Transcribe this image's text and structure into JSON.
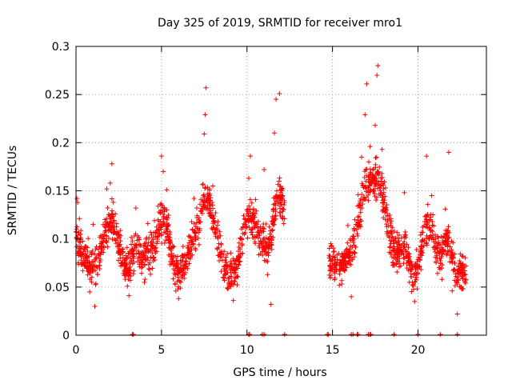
{
  "chart_data": {
    "type": "scatter",
    "title": "Day 325 of 2019, SRMTID for receiver mro1",
    "xlabel": "GPS time / hours",
    "ylabel": "SRMTID / TECUs",
    "xlim": [
      0,
      24
    ],
    "ylim": [
      0,
      0.3
    ],
    "xticks": [
      0,
      5,
      10,
      15,
      20
    ],
    "xtick_labels": [
      "0",
      "5",
      "10",
      "15",
      "20"
    ],
    "yticks": [
      0,
      0.05,
      0.1,
      0.15,
      0.2,
      0.25,
      0.3
    ],
    "ytick_labels": [
      "0",
      "0.05",
      "0.1",
      "0.15",
      "0.2",
      "0.25",
      "0.3"
    ],
    "grid": true,
    "marker": "+",
    "color": "#ff0000",
    "series": [
      {
        "name": "SRMTID",
        "segments": [
          {
            "x_range": [
              0.0,
              12.2
            ],
            "min": 0.025,
            "max": 0.26
          },
          {
            "x_range": [
              14.8,
              22.8
            ],
            "min": 0.02,
            "max": 0.28
          }
        ],
        "points": [
          [
            0.05,
            0.142
          ],
          [
            0.1,
            0.138
          ],
          [
            0.2,
            0.121
          ],
          [
            0.3,
            0.078
          ],
          [
            0.4,
            0.067
          ],
          [
            0.6,
            0.092
          ],
          [
            0.8,
            0.045
          ],
          [
            1.0,
            0.115
          ],
          [
            1.1,
            0.03
          ],
          [
            1.2,
            0.071
          ],
          [
            1.5,
            0.103
          ],
          [
            1.8,
            0.152
          ],
          [
            2.0,
            0.158
          ],
          [
            2.1,
            0.178
          ],
          [
            2.3,
            0.126
          ],
          [
            2.6,
            0.088
          ],
          [
            2.9,
            0.064
          ],
          [
            3.1,
            0.041
          ],
          [
            3.3,
            0.098
          ],
          [
            3.5,
            0.132
          ],
          [
            3.8,
            0.085
          ],
          [
            4.0,
            0.055
          ],
          [
            4.2,
            0.116
          ],
          [
            4.5,
            0.08
          ],
          [
            4.8,
            0.134
          ],
          [
            5.0,
            0.186
          ],
          [
            5.1,
            0.17
          ],
          [
            5.3,
            0.151
          ],
          [
            5.5,
            0.096
          ],
          [
            5.8,
            0.053
          ],
          [
            6.0,
            0.038
          ],
          [
            6.3,
            0.072
          ],
          [
            6.6,
            0.103
          ],
          [
            6.9,
            0.142
          ],
          [
            7.2,
            0.094
          ],
          [
            7.5,
            0.209
          ],
          [
            7.55,
            0.229
          ],
          [
            7.6,
            0.257
          ],
          [
            7.8,
            0.132
          ],
          [
            8.0,
            0.155
          ],
          [
            8.3,
            0.118
          ],
          [
            8.6,
            0.06
          ],
          [
            8.9,
            0.049
          ],
          [
            9.2,
            0.036
          ],
          [
            9.5,
            0.082
          ],
          [
            9.8,
            0.124
          ],
          [
            10.1,
            0.163
          ],
          [
            10.2,
            0.186
          ],
          [
            10.5,
            0.141
          ],
          [
            10.8,
            0.098
          ],
          [
            11.0,
            0.172
          ],
          [
            11.2,
            0.063
          ],
          [
            11.4,
            0.032
          ],
          [
            11.6,
            0.21
          ],
          [
            11.7,
            0.245
          ],
          [
            11.9,
            0.251
          ],
          [
            12.1,
            0.121
          ],
          [
            14.9,
            0.095
          ],
          [
            15.1,
            0.066
          ],
          [
            15.4,
            0.052
          ],
          [
            15.6,
            0.082
          ],
          [
            15.9,
            0.114
          ],
          [
            16.1,
            0.04
          ],
          [
            16.3,
            0.12
          ],
          [
            16.5,
            0.146
          ],
          [
            16.7,
            0.185
          ],
          [
            16.9,
            0.229
          ],
          [
            17.0,
            0.261
          ],
          [
            17.2,
            0.196
          ],
          [
            17.5,
            0.218
          ],
          [
            17.6,
            0.27
          ],
          [
            17.65,
            0.28
          ],
          [
            17.9,
            0.193
          ],
          [
            18.1,
            0.153
          ],
          [
            18.4,
            0.121
          ],
          [
            18.6,
            0.092
          ],
          [
            18.9,
            0.071
          ],
          [
            19.2,
            0.148
          ],
          [
            19.5,
            0.055
          ],
          [
            19.8,
            0.035
          ],
          [
            20.1,
            0.078
          ],
          [
            20.4,
            0.118
          ],
          [
            20.5,
            0.186
          ],
          [
            20.8,
            0.145
          ],
          [
            21.1,
            0.085
          ],
          [
            21.4,
            0.058
          ],
          [
            21.6,
            0.131
          ],
          [
            21.8,
            0.19
          ],
          [
            22.0,
            0.046
          ],
          [
            22.3,
            0.022
          ],
          [
            22.5,
            0.075
          ],
          [
            22.8,
            0.058
          ]
        ]
      },
      {
        "name": "marks at zero",
        "points": [
          [
            3.3,
            0
          ],
          [
            3.35,
            0
          ],
          [
            10.1,
            0
          ],
          [
            10.15,
            0
          ],
          [
            10.9,
            0
          ],
          [
            11.0,
            0
          ],
          [
            12.2,
            0
          ],
          [
            14.7,
            0
          ],
          [
            14.75,
            0
          ],
          [
            16.1,
            0
          ],
          [
            16.2,
            0
          ],
          [
            16.45,
            0
          ],
          [
            16.5,
            0
          ],
          [
            17.1,
            0
          ],
          [
            17.2,
            0
          ],
          [
            17.25,
            0
          ],
          [
            18.6,
            0
          ],
          [
            20.0,
            0
          ],
          [
            21.3,
            0
          ],
          [
            22.3,
            0
          ]
        ]
      }
    ]
  }
}
